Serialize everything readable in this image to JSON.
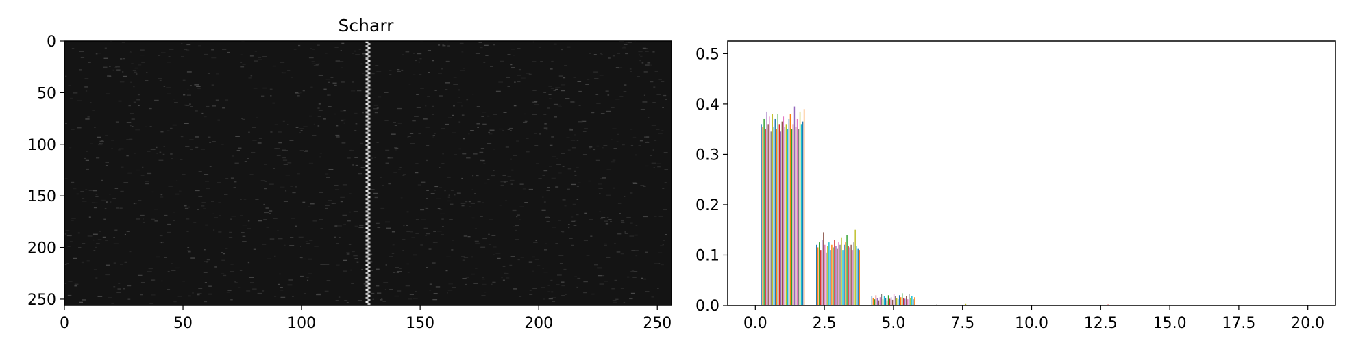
{
  "chart_data": [
    {
      "type": "heatmap",
      "title": "Scharr",
      "colormap": "gray",
      "image_width": 256,
      "image_height": 256,
      "x_ticks": [
        "0",
        "50",
        "100",
        "150",
        "200",
        "250"
      ],
      "y_ticks": [
        "0",
        "50",
        "100",
        "150",
        "200",
        "250"
      ],
      "xlim": [
        0,
        256
      ],
      "ylim": [
        256,
        0
      ],
      "bright_column_x": 128,
      "background_intensity": 0.08,
      "grid": false
    },
    {
      "type": "bar",
      "title": "",
      "xlabel": "",
      "ylabel": "",
      "xlim": [
        -1,
        21
      ],
      "ylim": [
        0,
        0.525
      ],
      "x_ticks": [
        "0.0",
        "2.5",
        "5.0",
        "7.5",
        "10.0",
        "12.5",
        "15.0",
        "17.5",
        "20.0"
      ],
      "y_ticks": [
        "0.0",
        "0.1",
        "0.2",
        "0.3",
        "0.4",
        "0.5"
      ],
      "grid": false,
      "series_colors": [
        "#1f77b4",
        "#ff7f0e",
        "#2ca02c",
        "#d62728",
        "#9467bd",
        "#8c564b",
        "#e377c2",
        "#7f7f7f",
        "#bcbd22",
        "#17becf"
      ],
      "bins": [
        {
          "x_start": 0.2,
          "x_end": 1.8,
          "values": [
            0.36,
            0.355,
            0.37,
            0.35,
            0.385,
            0.36,
            0.375,
            0.345,
            0.38,
            0.355,
            0.37,
            0.35,
            0.38,
            0.36,
            0.345,
            0.365,
            0.375,
            0.355,
            0.36,
            0.35,
            0.37,
            0.38,
            0.35,
            0.36,
            0.395,
            0.355,
            0.37,
            0.35,
            0.385,
            0.36,
            0.365,
            0.39
          ]
        },
        {
          "x_start": 2.2,
          "x_end": 3.8,
          "values": [
            0.12,
            0.115,
            0.125,
            0.11,
            0.13,
            0.145,
            0.12,
            0.105,
            0.118,
            0.125,
            0.11,
            0.12,
            0.115,
            0.13,
            0.118,
            0.112,
            0.125,
            0.12,
            0.135,
            0.11,
            0.12,
            0.125,
            0.14,
            0.118,
            0.115,
            0.12,
            0.11,
            0.125,
            0.15,
            0.118,
            0.112,
            0.11
          ]
        },
        {
          "x_start": 4.2,
          "x_end": 5.8,
          "values": [
            0.018,
            0.015,
            0.012,
            0.02,
            0.014,
            0.01,
            0.016,
            0.022,
            0.012,
            0.018,
            0.015,
            0.01,
            0.02,
            0.013,
            0.016,
            0.011,
            0.022,
            0.018,
            0.014,
            0.012,
            0.02,
            0.016,
            0.024,
            0.015,
            0.013,
            0.019,
            0.012,
            0.022,
            0.015,
            0.018,
            0.012,
            0.016
          ]
        },
        {
          "x_start": 6.2,
          "x_end": 7.8,
          "values": [
            0.0,
            0.0,
            0.001,
            0.0,
            0.0,
            0.0,
            0.0,
            0.002,
            0.0,
            0.0,
            0.001,
            0.0,
            0.0,
            0.0,
            0.0,
            0.0,
            0.001,
            0.0,
            0.0,
            0.0,
            0.0,
            0.0,
            0.0,
            0.001,
            0.0,
            0.0,
            0.0,
            0.0,
            0.003,
            0.0,
            0.0,
            0.0
          ]
        },
        {
          "x_start": 12.6,
          "x_end": 13.2,
          "values": [
            0.0,
            0.0,
            0.0,
            0.002,
            0.0,
            0.0,
            0.0,
            0.0,
            0.0,
            0.0,
            0.0,
            0.0
          ]
        }
      ]
    }
  ]
}
